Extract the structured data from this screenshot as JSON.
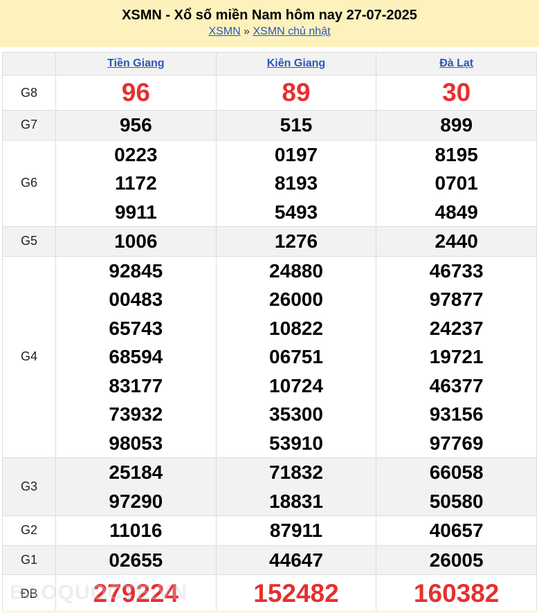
{
  "header": {
    "title": "XSMN - Xổ số miền Nam hôm nay 27-07-2025",
    "breadcrumb": [
      {
        "label": "XSMN"
      },
      {
        "label": "XSMN chủ nhật"
      }
    ],
    "separator": "»"
  },
  "provinces": [
    "Tiền Giang",
    "Kiên Giang",
    "Đà Lạt"
  ],
  "prizes": [
    {
      "label": "G8",
      "results": [
        [
          "96"
        ],
        [
          "89"
        ],
        [
          "30"
        ]
      ]
    },
    {
      "label": "G7",
      "results": [
        [
          "956"
        ],
        [
          "515"
        ],
        [
          "899"
        ]
      ]
    },
    {
      "label": "G6",
      "results": [
        [
          "0223",
          "1172",
          "9911"
        ],
        [
          "0197",
          "8193",
          "5493"
        ],
        [
          "8195",
          "0701",
          "4849"
        ]
      ]
    },
    {
      "label": "G5",
      "results": [
        [
          "1006"
        ],
        [
          "1276"
        ],
        [
          "2440"
        ]
      ]
    },
    {
      "label": "G4",
      "results": [
        [
          "92845",
          "00483",
          "65743",
          "68594",
          "83177",
          "73932",
          "98053"
        ],
        [
          "24880",
          "26000",
          "10822",
          "06751",
          "10724",
          "35300",
          "53910"
        ],
        [
          "46733",
          "97877",
          "24237",
          "19721",
          "46377",
          "93156",
          "97769"
        ]
      ]
    },
    {
      "label": "G3",
      "results": [
        [
          "25184",
          "97290"
        ],
        [
          "71832",
          "18831"
        ],
        [
          "66058",
          "50580"
        ]
      ]
    },
    {
      "label": "G2",
      "results": [
        [
          "11016"
        ],
        [
          "87911"
        ],
        [
          "40657"
        ]
      ]
    },
    {
      "label": "G1",
      "results": [
        [
          "02655"
        ],
        [
          "44647"
        ],
        [
          "26005"
        ]
      ]
    },
    {
      "label": "ĐB",
      "results": [
        [
          "279224"
        ],
        [
          "152482"
        ],
        [
          "160382"
        ]
      ]
    }
  ],
  "watermark": "BAOQUOCTE.VN",
  "colors": {
    "banner": "#fdf1bd",
    "link": "#2a56b8",
    "highlight": "#e53030"
  }
}
